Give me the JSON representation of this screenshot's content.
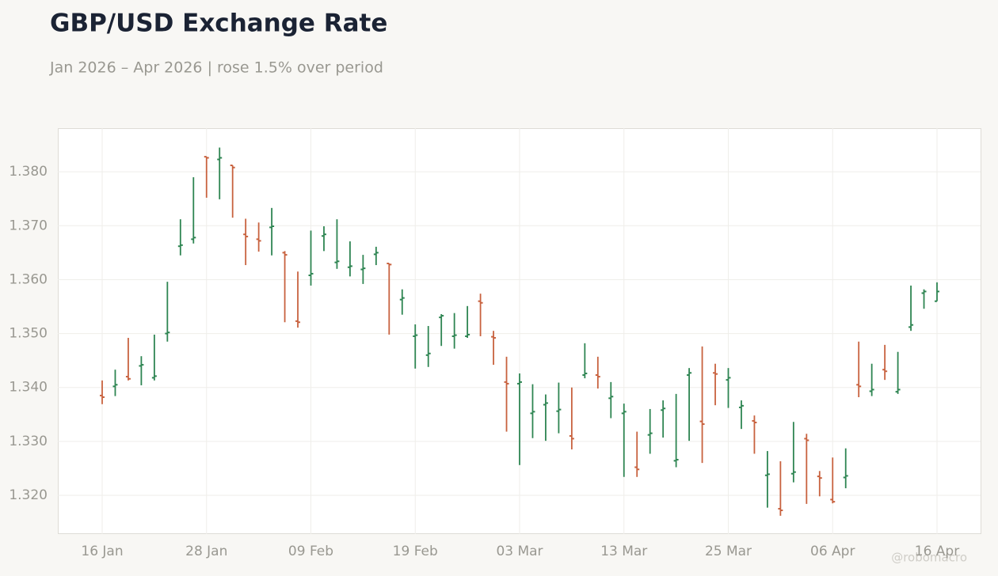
{
  "chart_data": {
    "type": "ohlc",
    "title": "GBP/USD Exchange Rate",
    "subtitle": "Jan 2026 – Apr 2026 | rose 1.5% over period",
    "watermark": "@robomacro",
    "categories": [
      "16 Jan",
      null,
      null,
      null,
      null,
      null,
      null,
      null,
      "28 Jan",
      null,
      null,
      null,
      null,
      null,
      null,
      null,
      "09 Feb",
      null,
      null,
      null,
      null,
      null,
      null,
      null,
      "19 Feb",
      null,
      null,
      null,
      null,
      null,
      null,
      null,
      "03 Mar",
      null,
      null,
      null,
      null,
      null,
      null,
      null,
      "13 Mar",
      null,
      null,
      null,
      null,
      null,
      null,
      null,
      "25 Mar",
      null,
      null,
      null,
      null,
      null,
      null,
      null,
      "06 Apr",
      null,
      null,
      null,
      null,
      null,
      null,
      null,
      "16 Apr"
    ],
    "open": [
      1.3385,
      1.3402,
      1.342,
      1.344,
      1.3418,
      1.35,
      1.3662,
      1.3675,
      1.3828,
      1.3823,
      1.3812,
      1.3684,
      1.3675,
      1.3697,
      1.365,
      1.3523,
      1.3608,
      1.3681,
      1.3632,
      1.3623,
      1.3619,
      1.3647,
      1.363,
      1.3563,
      1.3495,
      1.346,
      1.353,
      1.3495,
      1.3495,
      1.356,
      1.3494,
      1.341,
      1.3407,
      1.3352,
      1.3368,
      1.3356,
      1.331,
      1.3423,
      1.3423,
      1.338,
      1.3352,
      1.3252,
      1.3312,
      1.3358,
      1.3264,
      1.3423,
      1.3337,
      1.3427,
      1.3414,
      1.3363,
      1.3338,
      1.3237,
      1.3175,
      1.324,
      1.3305,
      1.3235,
      1.3192,
      1.3233,
      1.3405,
      1.3393,
      1.3433,
      1.3392,
      1.3512,
      1.3575,
      1.356
    ],
    "high": [
      1.3413,
      1.3433,
      1.3492,
      1.3458,
      1.3498,
      1.3596,
      1.3712,
      1.379,
      1.3828,
      1.3845,
      1.3812,
      1.3713,
      1.3706,
      1.3733,
      1.3653,
      1.3615,
      1.3691,
      1.3699,
      1.3712,
      1.3671,
      1.3646,
      1.3661,
      1.363,
      1.3582,
      1.3517,
      1.3514,
      1.3536,
      1.3538,
      1.3551,
      1.3574,
      1.3505,
      1.3457,
      1.3426,
      1.3406,
      1.3387,
      1.3409,
      1.34,
      1.3482,
      1.3457,
      1.341,
      1.337,
      1.3318,
      1.336,
      1.3376,
      1.3388,
      1.3436,
      1.3476,
      1.3444,
      1.3436,
      1.3376,
      1.3348,
      1.3282,
      1.3263,
      1.3336,
      1.3314,
      1.3245,
      1.327,
      1.3287,
      1.3485,
      1.3444,
      1.3479,
      1.3466,
      1.3589,
      1.3582,
      1.3595
    ],
    "low": [
      1.3369,
      1.3384,
      1.3413,
      1.3404,
      1.3413,
      1.3485,
      1.3645,
      1.3667,
      1.3752,
      1.3749,
      1.3715,
      1.3627,
      1.3652,
      1.3645,
      1.3521,
      1.3511,
      1.3589,
      1.3653,
      1.362,
      1.3606,
      1.3592,
      1.3627,
      1.3498,
      1.3535,
      1.3435,
      1.3438,
      1.3477,
      1.3472,
      1.3492,
      1.3495,
      1.3442,
      1.3318,
      1.3256,
      1.3306,
      1.3301,
      1.3315,
      1.3285,
      1.3417,
      1.3398,
      1.3343,
      1.3234,
      1.3234,
      1.3277,
      1.3307,
      1.3252,
      1.3301,
      1.326,
      1.3367,
      1.3362,
      1.3323,
      1.3277,
      1.3177,
      1.3162,
      1.3224,
      1.3184,
      1.3198,
      1.3185,
      1.3213,
      1.3382,
      1.3384,
      1.3414,
      1.3388,
      1.3505,
      1.3546,
      1.356
    ],
    "close": [
      1.3382,
      1.3405,
      1.3416,
      1.3442,
      1.3421,
      1.3502,
      1.3664,
      1.3678,
      1.3826,
      1.3826,
      1.3808,
      1.368,
      1.3672,
      1.3699,
      1.3646,
      1.3521,
      1.3611,
      1.3684,
      1.3634,
      1.3625,
      1.3621,
      1.365,
      1.3628,
      1.3566,
      1.3497,
      1.3463,
      1.3533,
      1.3497,
      1.3498,
      1.3557,
      1.3492,
      1.3407,
      1.341,
      1.3355,
      1.3371,
      1.3359,
      1.3305,
      1.3426,
      1.342,
      1.3383,
      1.3355,
      1.3248,
      1.3315,
      1.3361,
      1.3266,
      1.3427,
      1.3332,
      1.3425,
      1.3418,
      1.3366,
      1.3335,
      1.3239,
      1.3172,
      1.3243,
      1.3302,
      1.3232,
      1.3188,
      1.3236,
      1.3402,
      1.3396,
      1.343,
      1.3396,
      1.3516,
      1.3578,
      1.3578
    ],
    "up_color": "#2e8552",
    "down_color": "#c8623f",
    "ylim": [
      1.3128,
      1.3881
    ],
    "yticks": [
      {
        "value": 1.32,
        "label": "1.320"
      },
      {
        "value": 1.33,
        "label": "1.330"
      },
      {
        "value": 1.34,
        "label": "1.340"
      },
      {
        "value": 1.35,
        "label": "1.350"
      },
      {
        "value": 1.36,
        "label": "1.360"
      },
      {
        "value": 1.37,
        "label": "1.370"
      },
      {
        "value": 1.38,
        "label": "1.380"
      }
    ],
    "grid": true
  }
}
